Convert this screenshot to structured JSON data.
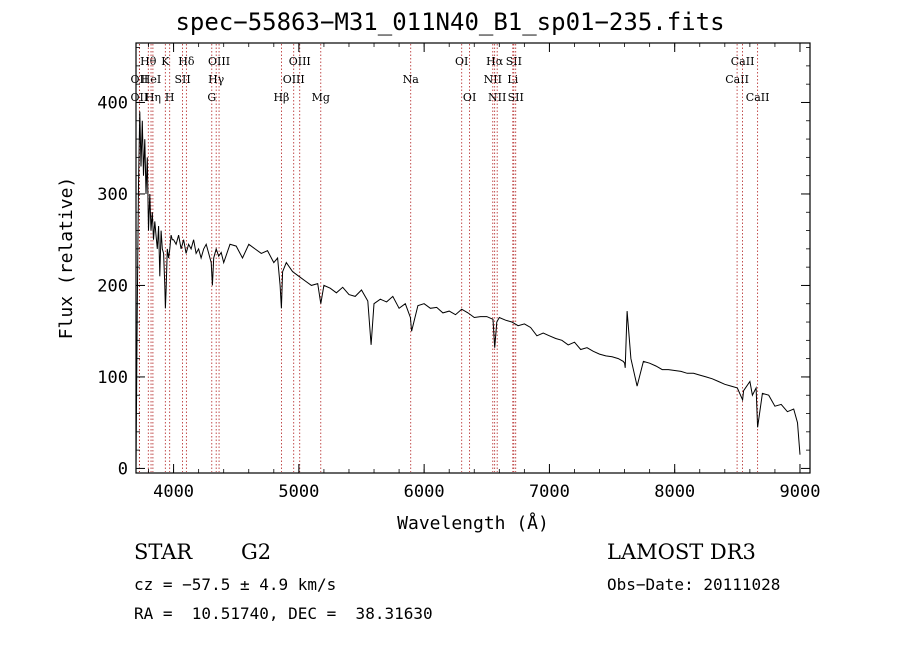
{
  "chart_data": {
    "type": "line",
    "title": "spec−55863−M31_011N40_B1_sp01−235.fits",
    "xlabel": "Wavelength (Å)",
    "ylabel": "Flux (relative)",
    "xlim": [
      3700,
      9080
    ],
    "ylim": [
      -5,
      465
    ],
    "xticks": [
      4000,
      5000,
      6000,
      7000,
      8000,
      9000
    ],
    "yticks": [
      0,
      100,
      200,
      300,
      400
    ],
    "grid": false,
    "series": [
      {
        "name": "spectrum",
        "x": [
          3700,
          3710,
          3720,
          3730,
          3740,
          3750,
          3760,
          3770,
          3780,
          3790,
          3800,
          3810,
          3820,
          3830,
          3840,
          3850,
          3860,
          3870,
          3880,
          3890,
          3900,
          3910,
          3920,
          3930,
          3935,
          3940,
          3950,
          3960,
          3970,
          3980,
          3990,
          4000,
          4020,
          4040,
          4060,
          4080,
          4100,
          4120,
          4140,
          4160,
          4180,
          4200,
          4220,
          4240,
          4260,
          4280,
          4300,
          4310,
          4320,
          4340,
          4360,
          4380,
          4400,
          4450,
          4500,
          4550,
          4600,
          4650,
          4700,
          4750,
          4800,
          4830,
          4850,
          4861,
          4870,
          4900,
          4950,
          5000,
          5050,
          5100,
          5150,
          5175,
          5200,
          5250,
          5300,
          5350,
          5400,
          5450,
          5500,
          5550,
          5577,
          5600,
          5650,
          5700,
          5750,
          5800,
          5850,
          5890,
          5900,
          5950,
          6000,
          6050,
          6100,
          6150,
          6200,
          6250,
          6300,
          6350,
          6400,
          6450,
          6500,
          6550,
          6563,
          6580,
          6600,
          6650,
          6700,
          6750,
          6800,
          6850,
          6900,
          6950,
          7000,
          7050,
          7100,
          7150,
          7200,
          7250,
          7300,
          7350,
          7400,
          7450,
          7500,
          7550,
          7590,
          7600,
          7605,
          7620,
          7650,
          7700,
          7750,
          7800,
          7850,
          7900,
          7950,
          8000,
          8050,
          8100,
          8150,
          8200,
          8250,
          8300,
          8350,
          8400,
          8450,
          8500,
          8542,
          8550,
          8600,
          8620,
          8650,
          8662,
          8700,
          8750,
          8800,
          8850,
          8900,
          8950,
          8980,
          9000
        ],
        "values": [
          0,
          180,
          310,
          390,
          330,
          380,
          320,
          360,
          300,
          340,
          260,
          300,
          260,
          280,
          250,
          270,
          255,
          240,
          265,
          210,
          260,
          240,
          235,
          200,
          175,
          195,
          240,
          230,
          240,
          255,
          250,
          250,
          245,
          255,
          240,
          250,
          235,
          245,
          240,
          250,
          235,
          240,
          230,
          240,
          245,
          235,
          225,
          200,
          230,
          240,
          232,
          236,
          225,
          245,
          243,
          230,
          245,
          240,
          235,
          238,
          225,
          230,
          200,
          175,
          215,
          225,
          215,
          210,
          205,
          200,
          202,
          180,
          200,
          197,
          192,
          198,
          190,
          188,
          195,
          183,
          135,
          180,
          185,
          182,
          188,
          175,
          180,
          165,
          150,
          178,
          180,
          175,
          176,
          170,
          172,
          168,
          174,
          170,
          165,
          166,
          166,
          163,
          132,
          160,
          165,
          162,
          160,
          156,
          158,
          154,
          145,
          148,
          145,
          142,
          140,
          135,
          138,
          130,
          132,
          128,
          125,
          123,
          122,
          120,
          117,
          115,
          110,
          172,
          120,
          90,
          117,
          115,
          112,
          108,
          108,
          107,
          106,
          104,
          104,
          102,
          100,
          98,
          95,
          92,
          90,
          88,
          75,
          85,
          95,
          80,
          88,
          45,
          82,
          80,
          68,
          70,
          62,
          65,
          50,
          15
        ]
      }
    ],
    "lines": [
      {
        "label": "OII",
        "x": 3727,
        "row": 1,
        "dy": 2
      },
      {
        "label": "OII",
        "x": 3727,
        "row": 2,
        "dy": 2
      },
      {
        "label": "Hθ",
        "x": 3798,
        "row": 0,
        "dy": 0
      },
      {
        "label": "HeI",
        "x": 3820,
        "row": 1,
        "dy": 0
      },
      {
        "label": "Hη",
        "x": 3835,
        "row": 2,
        "dy": 0
      },
      {
        "label": "K",
        "x": 3934,
        "row": 0,
        "dy": 0
      },
      {
        "label": "H",
        "x": 3969,
        "row": 2,
        "dy": 0
      },
      {
        "label": "SII",
        "x": 4072,
        "row": 1,
        "dy": 0
      },
      {
        "label": "Hδ",
        "x": 4102,
        "row": 0,
        "dy": 0
      },
      {
        "label": "Hγ",
        "x": 4340,
        "row": 1,
        "dy": 0
      },
      {
        "label": "G",
        "x": 4305,
        "row": 2,
        "dy": 0
      },
      {
        "label": "OIII",
        "x": 4363,
        "row": 0,
        "dy": 0
      },
      {
        "label": "Hβ",
        "x": 4861,
        "row": 2,
        "dy": 0
      },
      {
        "label": "OIII",
        "x": 4959,
        "row": 1,
        "dy": 0
      },
      {
        "label": "OIII",
        "x": 5007,
        "row": 0,
        "dy": 0
      },
      {
        "label": "Mg",
        "x": 5175,
        "row": 2,
        "dy": 0
      },
      {
        "label": "Na",
        "x": 5893,
        "row": 1,
        "dy": 0
      },
      {
        "label": "OI",
        "x": 6300,
        "row": 0,
        "dy": 0
      },
      {
        "label": "OI",
        "x": 6363,
        "row": 2,
        "dy": 0
      },
      {
        "label": "NII",
        "x": 6548,
        "row": 1,
        "dy": 0
      },
      {
        "label": "Hα",
        "x": 6563,
        "row": 0,
        "dy": 0
      },
      {
        "label": "NII",
        "x": 6583,
        "row": 2,
        "dy": 0
      },
      {
        "label": "Li",
        "x": 6708,
        "row": 1,
        "dy": 0
      },
      {
        "label": "SII",
        "x": 6716,
        "row": 0,
        "dy": 0
      },
      {
        "label": "SII",
        "x": 6731,
        "row": 2,
        "dy": 0
      },
      {
        "label": "CaII",
        "x": 8498,
        "row": 1,
        "dy": 0
      },
      {
        "label": "CaII",
        "x": 8542,
        "row": 0,
        "dy": 0
      },
      {
        "label": "CaII",
        "x": 8662,
        "row": 2,
        "dy": 0
      }
    ]
  },
  "info": {
    "class": "STAR",
    "subclass": "G2",
    "cz": "cz = −57.5 ± 4.9 km/s",
    "radec": "RA =  10.51740, DEC =  38.31630",
    "survey": "LAMOST DR3",
    "obsdate": "Obs−Date: 20111028"
  }
}
